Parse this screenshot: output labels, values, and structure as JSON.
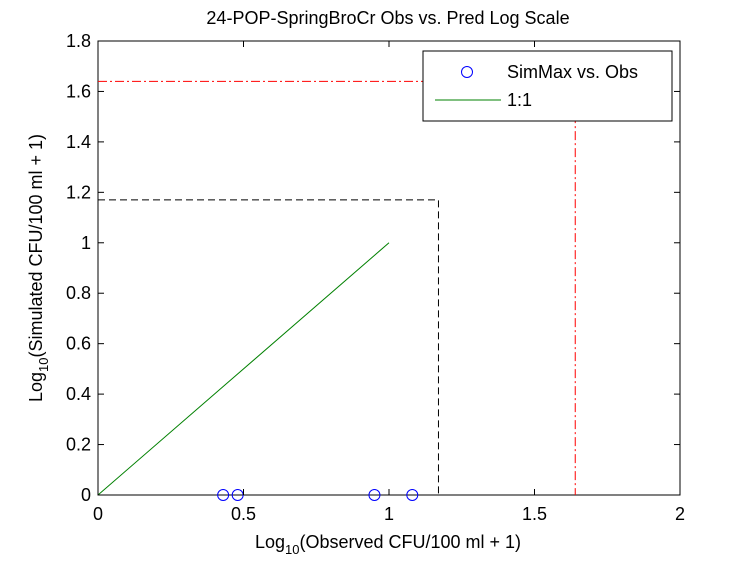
{
  "chart_data": {
    "type": "scatter",
    "title": "24-POP-SpringBroCr Obs vs. Pred Log Scale",
    "xlabel": {
      "prefix": "Log",
      "sub": "10",
      "suffix": "(Observed CFU/100 ml + 1)"
    },
    "ylabel": {
      "prefix": "Log",
      "sub": "10",
      "suffix": "(Simulated CFU/100 ml + 1)"
    },
    "xlim": [
      0,
      2
    ],
    "ylim": [
      0,
      1.8
    ],
    "xticks": [
      0,
      0.5,
      1,
      1.5,
      2
    ],
    "xtick_labels": [
      "0",
      "0.5",
      "1",
      "1.5",
      "2"
    ],
    "yticks": [
      0,
      0.2,
      0.4,
      0.6,
      0.8,
      1,
      1.2,
      1.4,
      1.6,
      1.8
    ],
    "ytick_labels": [
      "0",
      "0.2",
      "0.4",
      "0.6",
      "0.8",
      "1",
      "1.2",
      "1.4",
      "1.6",
      "1.8"
    ],
    "grid": false,
    "legend_position": "top-right",
    "series": [
      {
        "name": "SimMax vs. Obs",
        "kind": "scatter",
        "marker": "circle",
        "color": "#0000ff",
        "x": [
          0.43,
          0.48,
          0.95,
          1.08
        ],
        "y": [
          0,
          0,
          0,
          0
        ]
      },
      {
        "name": "1:1",
        "kind": "line",
        "color": "#008000",
        "x": [
          0,
          1
        ],
        "y": [
          0,
          1
        ]
      }
    ],
    "reference_lines": [
      {
        "kind": "dashed",
        "color": "#000000",
        "x": [
          0,
          1.17,
          1.17
        ],
        "y": [
          1.17,
          1.17,
          0
        ]
      },
      {
        "kind": "dashdot",
        "color": "#ff0000",
        "x": [
          0,
          1.64,
          1.64
        ],
        "y": [
          1.64,
          1.64,
          0
        ]
      }
    ]
  }
}
